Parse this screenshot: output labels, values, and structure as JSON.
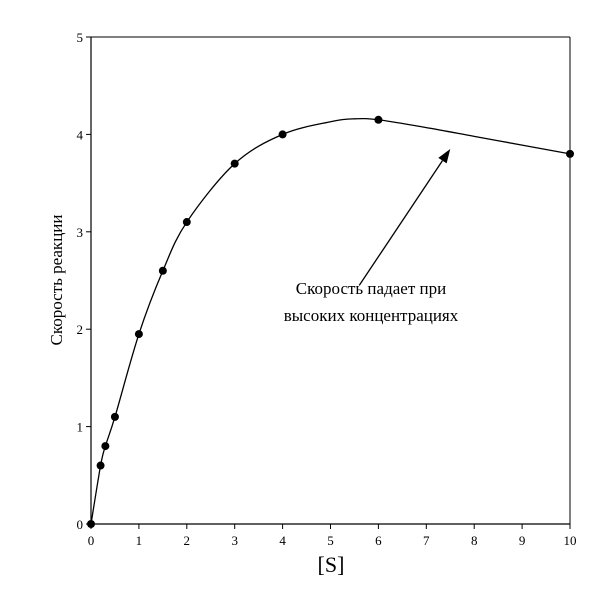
{
  "chart_data": {
    "type": "line",
    "title": "",
    "xlabel": "[S]",
    "ylabel": "Скорость реакции",
    "xlim": [
      0,
      10
    ],
    "ylim": [
      0,
      5
    ],
    "x_ticks": [
      0,
      1,
      2,
      3,
      4,
      5,
      6,
      7,
      8,
      9,
      10
    ],
    "y_ticks": [
      0,
      1,
      2,
      3,
      4,
      5
    ],
    "grid": false,
    "legend": "none",
    "colors": {
      "line": "#000000",
      "marker": "#000000",
      "axis": "#000000"
    },
    "series": [
      {
        "x": [
          0,
          0.2,
          0.3,
          0.5,
          1,
          1.5,
          2,
          3,
          4,
          6,
          10
        ],
        "y": [
          0,
          0.6,
          0.8,
          1.1,
          1.95,
          2.6,
          3.1,
          3.7,
          4.0,
          4.15,
          3.8
        ]
      }
    ],
    "curve": {
      "x": [
        0,
        0.2,
        0.3,
        0.5,
        1,
        1.5,
        2,
        3,
        4,
        5,
        5.5,
        6,
        7,
        8,
        9,
        10
      ],
      "y": [
        0,
        0.6,
        0.8,
        1.1,
        1.95,
        2.6,
        3.1,
        3.7,
        4.0,
        4.13,
        4.16,
        4.15,
        4.07,
        3.98,
        3.89,
        3.8
      ]
    },
    "annotation": {
      "lines": [
        "Скорость падает при",
        "высоких концентрациях"
      ],
      "arrow_from": [
        5.6,
        2.45
      ],
      "arrow_to": [
        7.5,
        3.85
      ]
    }
  }
}
